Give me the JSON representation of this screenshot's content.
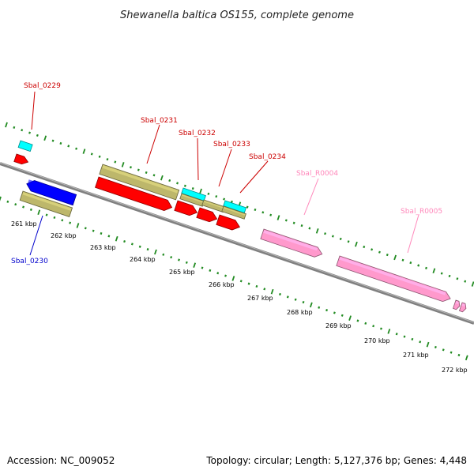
{
  "title": "Shewanella baltica OS155, complete genome",
  "footer": {
    "accession": "Accession: NC_009052",
    "topology": "Topology: circular; Length: 5,127,376 bp; Genes: 4,448"
  },
  "scale_labels": [
    "261 kbp",
    "262 kbp",
    "263 kbp",
    "264 kbp",
    "265 kbp",
    "266 kbp",
    "267 kbp",
    "268 kbp",
    "269 kbp",
    "270 kbp",
    "271 kbp",
    "272 kbp"
  ],
  "gene_labels": {
    "sbal_0229": "Sbal_0229",
    "sbal_0230": "Sbal_0230",
    "sbal_0231": "Sbal_0231",
    "sbal_0232": "Sbal_0232",
    "sbal_0233": "Sbal_0233",
    "sbal_0234": "Sbal_0234",
    "sbal_r0004": "Sbal_R0004",
    "sbal_r0005": "Sbal_R0005"
  },
  "colors": {
    "cds": "#ff0000",
    "cds_reverse": "#0000ff",
    "gene": "#bdb76b",
    "rrna": "#ff99cc",
    "trna": "#00ffff",
    "backbone": "#808080",
    "ticks": "#228b22",
    "label_forward": "#cc0000",
    "label_reverse": "#0000cc",
    "label_rna": "#ff88bb"
  }
}
